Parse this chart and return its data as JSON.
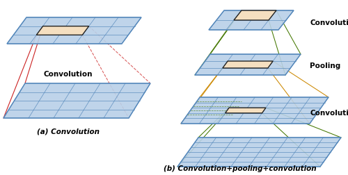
{
  "fig_width": 5.0,
  "fig_height": 2.52,
  "dpi": 100,
  "bg_color": "#ffffff",
  "grid_fill": "#b8d0e8",
  "grid_edge": "#5588bb",
  "highlight_fill": "#f5dfc0",
  "highlight_edge": "#222222",
  "red_line": "#cc2222",
  "green_line": "#447700",
  "orange_line": "#cc8800",
  "label_color": "#000000",
  "title_a": "(a) Convolution",
  "title_b": "(b) Convolution+pooling+convolution",
  "label_conv_top": "Convolution",
  "label_pool": "Pooling",
  "label_conv_mid": "Convolution"
}
